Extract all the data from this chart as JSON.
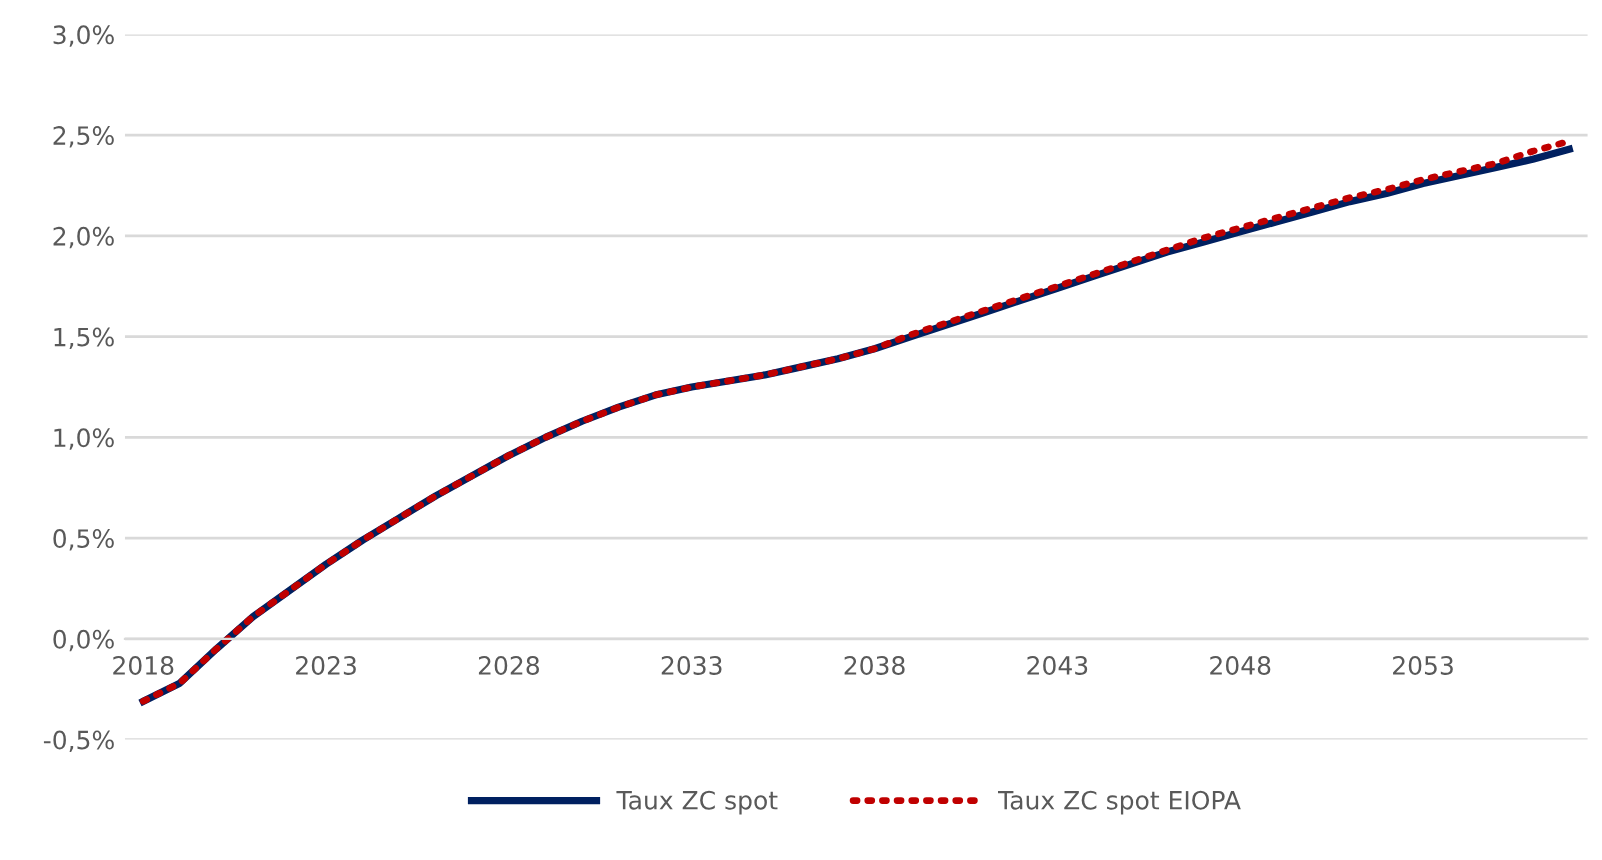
{
  "chart_data": {
    "type": "line",
    "categories": [
      "2018",
      null,
      null,
      null,
      null,
      "2023",
      null,
      null,
      null,
      null,
      "2028",
      null,
      null,
      null,
      null,
      "2033",
      null,
      null,
      null,
      null,
      "2038",
      null,
      null,
      null,
      null,
      "2043",
      null,
      null,
      null,
      null,
      "2048",
      null,
      null,
      null,
      null,
      "2053",
      null,
      null,
      null,
      null
    ],
    "series": [
      {
        "name": "Taux ZC spot",
        "color": "#002060",
        "line_style": "solid",
        "values": [
          -0.31,
          -0.22,
          -0.05,
          0.11,
          0.24,
          0.37,
          0.49,
          0.6,
          0.71,
          0.81,
          0.91,
          1.0,
          1.08,
          1.15,
          1.21,
          1.25,
          1.28,
          1.31,
          1.35,
          1.39,
          1.44,
          1.5,
          1.56,
          1.62,
          1.68,
          1.74,
          1.8,
          1.86,
          1.92,
          1.97,
          2.02,
          2.07,
          2.12,
          2.17,
          2.21,
          2.26,
          2.3,
          2.34,
          2.38,
          2.43
        ]
      },
      {
        "name": "Taux ZC spot EIOPA",
        "color": "#c00000",
        "line_style": "dotted",
        "values": [
          -0.31,
          -0.22,
          -0.05,
          0.11,
          0.24,
          0.37,
          0.49,
          0.6,
          0.71,
          0.81,
          0.91,
          1.0,
          1.08,
          1.15,
          1.21,
          1.25,
          1.28,
          1.31,
          1.35,
          1.39,
          1.44,
          1.51,
          1.57,
          1.63,
          1.69,
          1.75,
          1.81,
          1.87,
          1.93,
          1.99,
          2.04,
          2.09,
          2.14,
          2.19,
          2.23,
          2.28,
          2.32,
          2.36,
          2.42,
          2.47
        ]
      }
    ],
    "ylim": [
      -0.5,
      3.0
    ],
    "yticks": [
      {
        "value": -0.5,
        "label": "-0,5%"
      },
      {
        "value": 0,
        "label": "0,0%"
      },
      {
        "value": 0.5,
        "label": "0,5%"
      },
      {
        "value": 1.0,
        "label": "1,0%"
      },
      {
        "value": 1.5,
        "label": "1,5%"
      },
      {
        "value": 2.0,
        "label": "2,0%"
      },
      {
        "value": 2.5,
        "label": "2,5%"
      },
      {
        "value": 3.0,
        "label": "3,0%"
      }
    ],
    "grid": "y",
    "legend": "bottom",
    "marker": "none"
  }
}
